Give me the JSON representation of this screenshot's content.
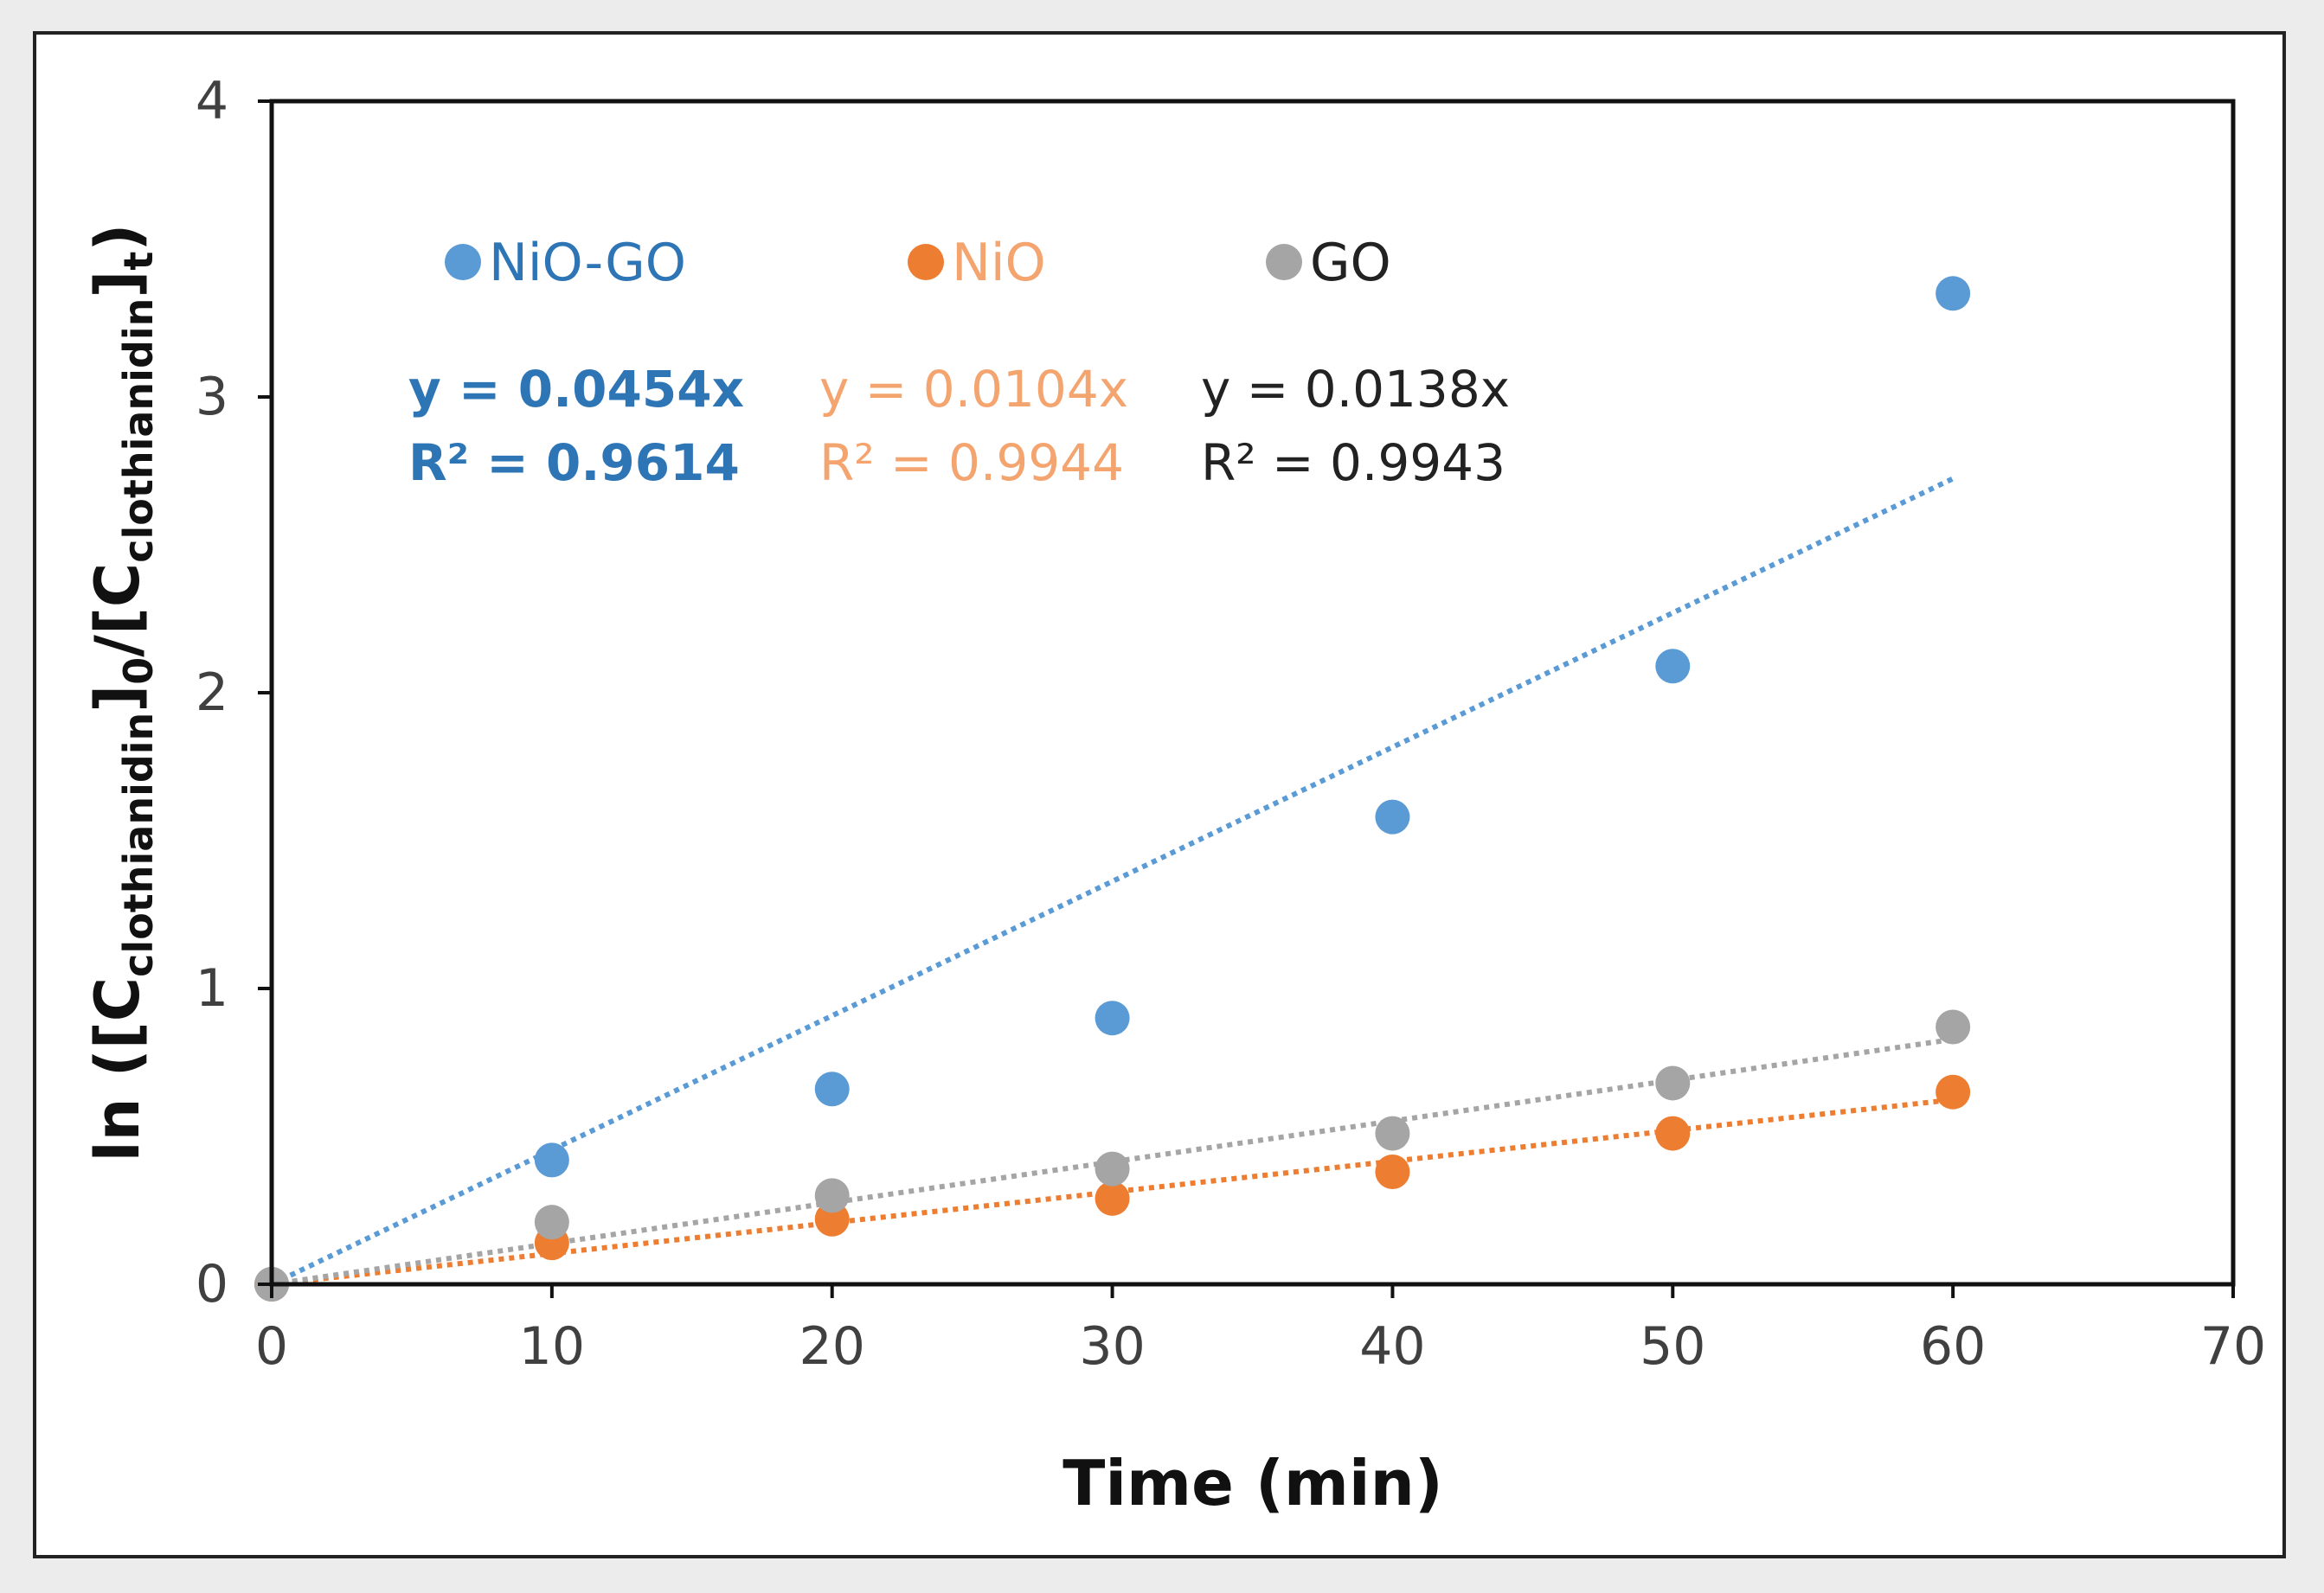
{
  "chart_data": {
    "type": "scatter",
    "title": "",
    "xlabel": "Time (min)",
    "ylabel": {
      "prefix": "ln ([C",
      "sub1": "clothianidin",
      "mid": "]",
      "sub2": "0",
      "mid2": "/[C",
      "sub3": "clothianidin",
      "mid3": "]",
      "sub4": "t",
      "suffix": ")"
    },
    "xlim": [
      0,
      70
    ],
    "ylim": [
      0,
      4
    ],
    "xticks": [
      "0",
      "10",
      "20",
      "30",
      "40",
      "50",
      "60",
      "70"
    ],
    "yticks": [
      "0",
      "1",
      "2",
      "3",
      "4"
    ],
    "grid": false,
    "legend_position": "top",
    "series": [
      {
        "name": "NiO-GO",
        "color": "#5b9bd5",
        "label_color": "#2e75b6",
        "x": [
          0,
          10,
          20,
          30,
          40,
          50,
          60
        ],
        "y": [
          0,
          0.42,
          0.66,
          0.9,
          1.58,
          2.09,
          3.35
        ],
        "trend": {
          "slope": 0.0454,
          "x_end": 60
        },
        "equation": "y = 0.0454x",
        "r2": "R² = 0.9614",
        "eq_bold": true
      },
      {
        "name": "NiO",
        "color": "#ed7d31",
        "label_color": "#f4a46e",
        "x": [
          0,
          10,
          20,
          30,
          40,
          50,
          60
        ],
        "y": [
          0,
          0.14,
          0.22,
          0.29,
          0.38,
          0.51,
          0.65
        ],
        "trend": {
          "slope": 0.0104,
          "x_end": 60
        },
        "equation": "y = 0.0104x",
        "r2": "R² = 0.9944",
        "eq_bold": false
      },
      {
        "name": "GO",
        "color": "#a5a5a5",
        "label_color": "#222222",
        "x": [
          0,
          10,
          20,
          30,
          40,
          50,
          60
        ],
        "y": [
          0,
          0.21,
          0.3,
          0.39,
          0.51,
          0.68,
          0.87
        ],
        "trend": {
          "slope": 0.0138,
          "x_end": 60
        },
        "equation": "y = 0.0138x",
        "r2": "R² = 0.9943",
        "eq_bold": false
      }
    ]
  }
}
